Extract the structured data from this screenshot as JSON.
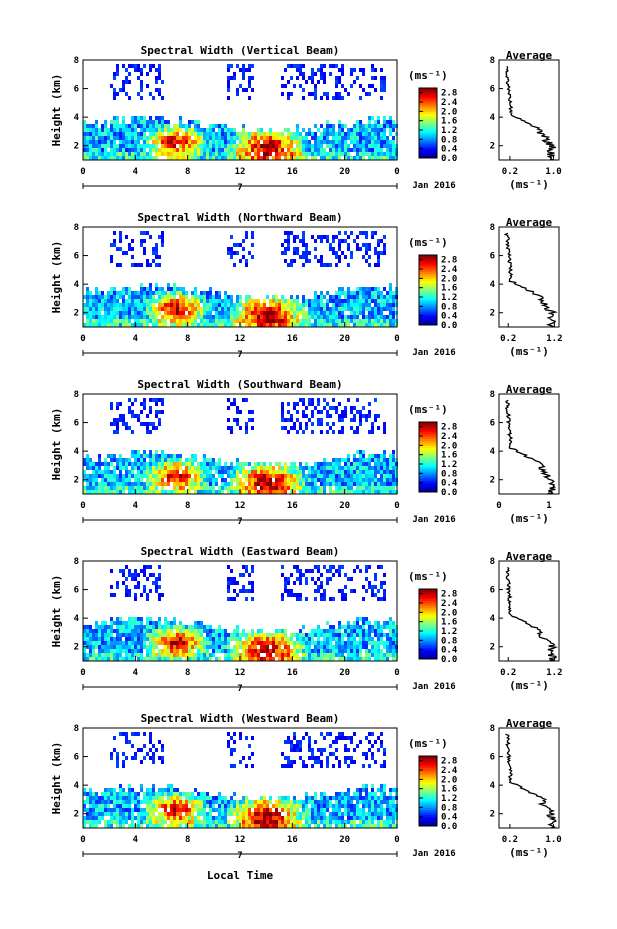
{
  "figure": {
    "xlabel": "Local Time",
    "x_day_label": "7",
    "x_month_label": "Jan 2016"
  },
  "chart_data": [
    {
      "type": "heatmap",
      "title": "Spectral Width (Vertical Beam)",
      "xlabel": "Local Time",
      "ylabel": "Height (km)",
      "xlim": [
        0,
        24
      ],
      "ylim": [
        1,
        8
      ],
      "xticks": [
        "0",
        "4",
        "8",
        "12",
        "16",
        "20",
        "0"
      ],
      "yticks": [
        "2",
        "4",
        "6",
        "8"
      ],
      "colorbar": {
        "unit": "(ms⁻¹)",
        "ticks": [
          "0.0",
          "0.4",
          "0.8",
          "1.2",
          "1.6",
          "2.0",
          "2.4",
          "2.8"
        ],
        "range": [
          0.0,
          3.0
        ]
      },
      "profile": {
        "title": "Average",
        "xlabel": "(ms⁻¹)",
        "xticks": [
          "0.2",
          "1.0"
        ],
        "xlim": [
          0,
          1.1
        ],
        "yticks": [
          "2",
          "4",
          "6",
          "8"
        ],
        "ylim": [
          1,
          8
        ]
      }
    },
    {
      "type": "heatmap",
      "title": "Spectral Width (Northward Beam)",
      "xlabel": "Local Time",
      "ylabel": "Height (km)",
      "xlim": [
        0,
        24
      ],
      "ylim": [
        1,
        8
      ],
      "xticks": [
        "0",
        "4",
        "8",
        "12",
        "16",
        "20",
        "0"
      ],
      "yticks": [
        "2",
        "4",
        "6",
        "8"
      ],
      "colorbar": {
        "unit": "(ms⁻¹)",
        "ticks": [
          "0.0",
          "0.4",
          "0.8",
          "1.2",
          "1.6",
          "2.0",
          "2.4",
          "2.8"
        ],
        "range": [
          0.0,
          3.0
        ]
      },
      "profile": {
        "title": "Average",
        "xlabel": "(ms⁻¹)",
        "xticks": [
          "0.2",
          "1.2"
        ],
        "xlim": [
          0,
          1.3
        ],
        "yticks": [
          "2",
          "4",
          "6",
          "8"
        ],
        "ylim": [
          1,
          8
        ]
      }
    },
    {
      "type": "heatmap",
      "title": "Spectral Width (Southward Beam)",
      "xlabel": "Local Time",
      "ylabel": "Height (km)",
      "xlim": [
        0,
        24
      ],
      "ylim": [
        1,
        8
      ],
      "xticks": [
        "0",
        "4",
        "8",
        "12",
        "16",
        "20",
        "0"
      ],
      "yticks": [
        "2",
        "4",
        "6",
        "8"
      ],
      "colorbar": {
        "unit": "(ms⁻¹)",
        "ticks": [
          "0.0",
          "0.4",
          "0.8",
          "1.2",
          "1.6",
          "2.0",
          "2.4",
          "2.8"
        ],
        "range": [
          0.0,
          3.0
        ]
      },
      "profile": {
        "title": "Average",
        "xlabel": "(ms⁻¹)",
        "xticks": [
          "0",
          "1"
        ],
        "xlim": [
          0,
          1.2
        ],
        "yticks": [
          "2",
          "4",
          "6",
          "8"
        ],
        "ylim": [
          1,
          8
        ]
      }
    },
    {
      "type": "heatmap",
      "title": "Spectral Width (Eastward Beam)",
      "xlabel": "Local Time",
      "ylabel": "Height (km)",
      "xlim": [
        0,
        24
      ],
      "ylim": [
        1,
        8
      ],
      "xticks": [
        "0",
        "4",
        "8",
        "12",
        "16",
        "20",
        "0"
      ],
      "yticks": [
        "2",
        "4",
        "6",
        "8"
      ],
      "colorbar": {
        "unit": "(ms⁻¹)",
        "ticks": [
          "0.0",
          "0.4",
          "0.8",
          "1.2",
          "1.6",
          "2.0",
          "2.4",
          "2.8"
        ],
        "range": [
          0.0,
          3.0
        ]
      },
      "profile": {
        "title": "Average",
        "xlabel": "(ms⁻¹)",
        "xticks": [
          "0.2",
          "1.2"
        ],
        "xlim": [
          0,
          1.3
        ],
        "yticks": [
          "2",
          "4",
          "6",
          "8"
        ],
        "ylim": [
          1,
          8
        ]
      }
    },
    {
      "type": "heatmap",
      "title": "Spectral Width (Westward Beam)",
      "xlabel": "Local Time",
      "ylabel": "Height (km)",
      "xlim": [
        0,
        24
      ],
      "ylim": [
        1,
        8
      ],
      "xticks": [
        "0",
        "4",
        "8",
        "12",
        "16",
        "20",
        "0"
      ],
      "yticks": [
        "2",
        "4",
        "6",
        "8"
      ],
      "colorbar": {
        "unit": "(ms⁻¹)",
        "ticks": [
          "0.0",
          "0.4",
          "0.8",
          "1.2",
          "1.6",
          "2.0",
          "2.4",
          "2.8"
        ],
        "range": [
          0.0,
          3.0
        ]
      },
      "profile": {
        "title": "Average",
        "xlabel": "(ms⁻¹)",
        "xticks": [
          "0.2",
          "1.0"
        ],
        "xlim": [
          0,
          1.1
        ],
        "yticks": [
          "2",
          "4",
          "6",
          "8"
        ],
        "ylim": [
          1,
          8
        ]
      }
    }
  ]
}
